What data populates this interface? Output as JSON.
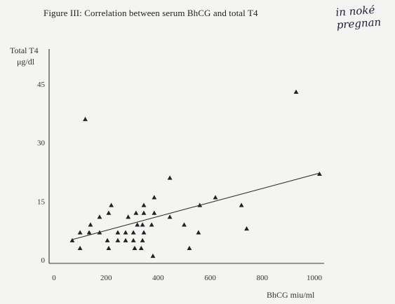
{
  "figure": {
    "title": "Figure III: Correlation between serum BhCG and total T4"
  },
  "handwriting": {
    "line1": "in noké",
    "line2": "pregnan"
  },
  "chart_data": {
    "type": "scatter",
    "title": "Figure III: Correlation between serum BhCG and total T4",
    "xlabel": "BhCG miu/ml",
    "ylabel": "Total T4",
    "ylabel_unit": "μg/dl",
    "xlim": [
      0,
      1000
    ],
    "ylim": [
      0,
      45
    ],
    "x_ticks": [
      0,
      200,
      400,
      600,
      800,
      1000
    ],
    "y_ticks": [
      0,
      15,
      30,
      45
    ],
    "grid": false,
    "marker": "triangle",
    "points": [
      {
        "x": 70,
        "y": 5
      },
      {
        "x": 100,
        "y": 3
      },
      {
        "x": 100,
        "y": 7
      },
      {
        "x": 120,
        "y": 36
      },
      {
        "x": 135,
        "y": 7
      },
      {
        "x": 140,
        "y": 9
      },
      {
        "x": 175,
        "y": 11
      },
      {
        "x": 175,
        "y": 7
      },
      {
        "x": 210,
        "y": 12
      },
      {
        "x": 220,
        "y": 14
      },
      {
        "x": 205,
        "y": 5
      },
      {
        "x": 210,
        "y": 3
      },
      {
        "x": 245,
        "y": 5
      },
      {
        "x": 245,
        "y": 7
      },
      {
        "x": 275,
        "y": 5
      },
      {
        "x": 275,
        "y": 7
      },
      {
        "x": 285,
        "y": 11
      },
      {
        "x": 305,
        "y": 5
      },
      {
        "x": 305,
        "y": 7
      },
      {
        "x": 310,
        "y": 3
      },
      {
        "x": 315,
        "y": 12
      },
      {
        "x": 320,
        "y": 9
      },
      {
        "x": 335,
        "y": 3
      },
      {
        "x": 340,
        "y": 5
      },
      {
        "x": 345,
        "y": 7
      },
      {
        "x": 340,
        "y": 9
      },
      {
        "x": 345,
        "y": 12
      },
      {
        "x": 345,
        "y": 14
      },
      {
        "x": 375,
        "y": 9
      },
      {
        "x": 380,
        "y": 1
      },
      {
        "x": 385,
        "y": 12
      },
      {
        "x": 385,
        "y": 16
      },
      {
        "x": 445,
        "y": 21
      },
      {
        "x": 445,
        "y": 11
      },
      {
        "x": 500,
        "y": 9
      },
      {
        "x": 520,
        "y": 3
      },
      {
        "x": 555,
        "y": 7
      },
      {
        "x": 560,
        "y": 14
      },
      {
        "x": 620,
        "y": 16
      },
      {
        "x": 720,
        "y": 14
      },
      {
        "x": 740,
        "y": 8
      },
      {
        "x": 930,
        "y": 43
      },
      {
        "x": 1020,
        "y": 22
      }
    ],
    "trendline": {
      "x": [
        70,
        1020
      ],
      "y": [
        5.2,
        22.2
      ]
    }
  }
}
